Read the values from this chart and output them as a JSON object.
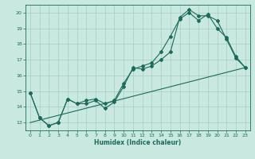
{
  "xlabel": "Humidex (Indice chaleur)",
  "bg_color": "#c8e8e0",
  "grid_color": "#a8ccc4",
  "line_color": "#1a6b5a",
  "xlim": [
    -0.5,
    23.5
  ],
  "ylim": [
    12.5,
    20.5
  ],
  "xticks": [
    0,
    1,
    2,
    3,
    4,
    5,
    6,
    7,
    8,
    9,
    10,
    11,
    12,
    13,
    14,
    15,
    16,
    17,
    18,
    19,
    20,
    21,
    22,
    23
  ],
  "yticks": [
    13,
    14,
    15,
    16,
    17,
    18,
    19,
    20
  ],
  "line1_x": [
    0,
    1,
    2,
    3,
    4,
    5,
    6,
    7,
    8,
    9,
    10,
    11,
    12,
    13,
    14,
    15,
    16,
    17,
    18,
    19,
    20,
    21,
    22,
    23
  ],
  "line1_y": [
    14.9,
    13.3,
    12.8,
    13.0,
    14.5,
    14.2,
    14.2,
    14.4,
    13.9,
    14.3,
    15.3,
    16.5,
    16.4,
    16.6,
    17.0,
    17.5,
    19.7,
    20.2,
    19.8,
    19.8,
    19.5,
    18.3,
    17.1,
    16.5
  ],
  "line2_x": [
    0,
    1,
    2,
    3,
    4,
    5,
    6,
    7,
    8,
    9,
    10,
    11,
    12,
    13,
    14,
    15,
    16,
    17,
    18,
    19,
    20,
    21,
    22,
    23
  ],
  "line2_y": [
    14.9,
    13.3,
    12.8,
    13.0,
    14.5,
    14.2,
    14.4,
    14.5,
    14.2,
    14.4,
    15.5,
    16.4,
    16.6,
    16.8,
    17.5,
    18.5,
    19.6,
    20.0,
    19.5,
    19.9,
    19.0,
    18.4,
    17.2,
    16.5
  ],
  "line3_x": [
    0,
    23
  ],
  "line3_y": [
    13.0,
    16.5
  ]
}
